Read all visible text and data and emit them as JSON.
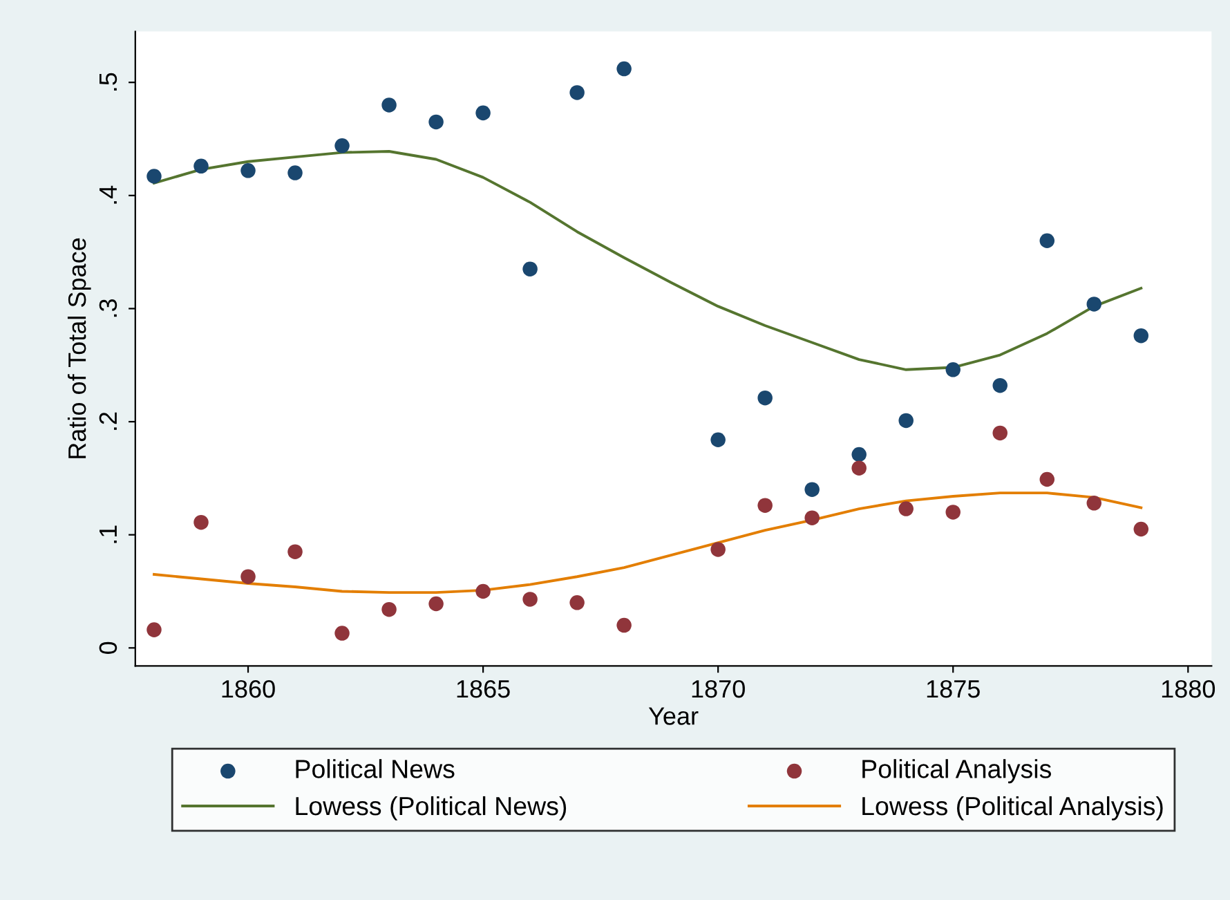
{
  "chart_data": {
    "type": "scatter",
    "xlabel": "Year",
    "ylabel": "Ratio of Total Space",
    "xlim": [
      1857.6,
      1880.5
    ],
    "xticks": [
      1860,
      1865,
      1870,
      1875,
      1880
    ],
    "ylim": [
      -0.016,
      0.545
    ],
    "yticks": [
      0,
      {
        "value": 0.1,
        "label": ".1"
      },
      {
        "value": 0.2,
        "label": ".2"
      },
      {
        "value": 0.3,
        "label": ".3"
      },
      {
        "value": 0.4,
        "label": ".4"
      },
      {
        "value": 0.5,
        "label": ".5"
      }
    ],
    "grid": false,
    "legend": "bottom",
    "series": [
      {
        "name": "Political News",
        "marker": "circle",
        "color": "#1a476f",
        "x": [
          1858,
          1859,
          1860,
          1861,
          1862,
          1863,
          1864,
          1865,
          1866,
          1867,
          1868,
          1870,
          1871,
          1872,
          1873,
          1874,
          1875,
          1876,
          1877,
          1878,
          1879
        ],
        "values": [
          0.417,
          0.426,
          0.422,
          0.42,
          0.444,
          0.48,
          0.465,
          0.473,
          0.335,
          0.491,
          0.512,
          0.184,
          0.221,
          0.14,
          0.171,
          0.201,
          0.246,
          0.232,
          0.36,
          0.304,
          0.276
        ]
      },
      {
        "name": "Political Analysis",
        "marker": "circle",
        "color": "#90353b",
        "x": [
          1858,
          1859,
          1860,
          1861,
          1862,
          1863,
          1864,
          1865,
          1866,
          1867,
          1868,
          1870,
          1871,
          1872,
          1873,
          1874,
          1875,
          1876,
          1877,
          1878,
          1879
        ],
        "values": [
          0.016,
          0.111,
          0.063,
          0.085,
          0.013,
          0.034,
          0.039,
          0.05,
          0.043,
          0.04,
          0.02,
          0.087,
          0.126,
          0.115,
          0.159,
          0.123,
          0.12,
          0.19,
          0.149,
          0.128,
          0.105
        ]
      },
      {
        "name": "Lowess (Political News)",
        "type": "line",
        "color": "#55752f",
        "x": [
          1858,
          1859,
          1860,
          1861,
          1862,
          1863,
          1864,
          1865,
          1866,
          1867,
          1868,
          1869,
          1870,
          1871,
          1872,
          1873,
          1874,
          1875,
          1876,
          1877,
          1878,
          1879
        ],
        "values": [
          0.411,
          0.423,
          0.43,
          0.434,
          0.438,
          0.439,
          0.432,
          0.416,
          0.394,
          0.368,
          0.345,
          0.323,
          0.302,
          0.285,
          0.27,
          0.255,
          0.246,
          0.248,
          0.259,
          0.278,
          0.302,
          0.318
        ]
      },
      {
        "name": "Lowess (Political Analysis)",
        "type": "line",
        "color": "#e37e00",
        "x": [
          1858,
          1859,
          1860,
          1861,
          1862,
          1863,
          1864,
          1865,
          1866,
          1867,
          1868,
          1869,
          1870,
          1871,
          1872,
          1873,
          1874,
          1875,
          1876,
          1877,
          1878,
          1879
        ],
        "values": [
          0.065,
          0.061,
          0.057,
          0.054,
          0.05,
          0.049,
          0.049,
          0.051,
          0.056,
          0.063,
          0.071,
          0.082,
          0.093,
          0.104,
          0.113,
          0.123,
          0.13,
          0.134,
          0.137,
          0.137,
          0.133,
          0.124
        ]
      }
    ]
  }
}
